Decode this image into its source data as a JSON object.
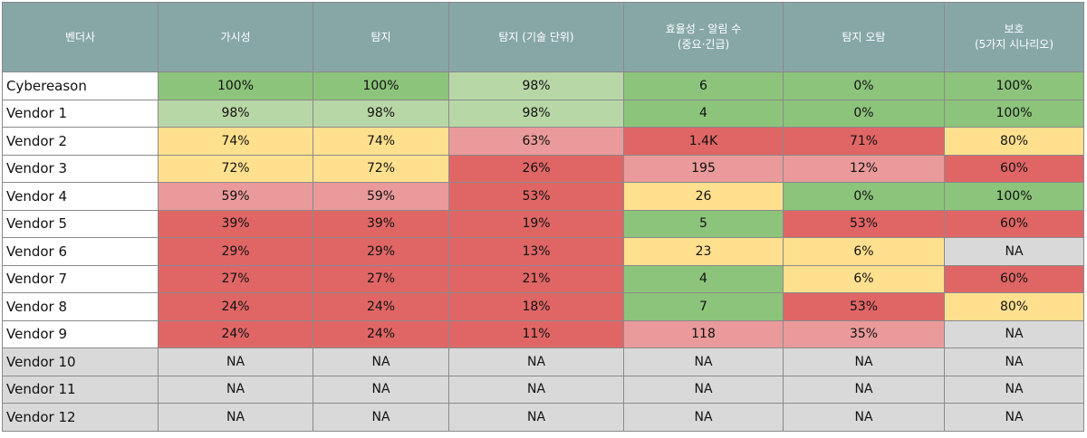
{
  "headers": [
    [
      "벤더사"
    ],
    [
      "가시성"
    ],
    [
      "탐지"
    ],
    [
      "탐지 (기술 단위)"
    ],
    [
      "효율성 – 알림 수",
      "(중요·긴급)"
    ],
    [
      "탐지 오탐"
    ],
    [
      "보호",
      "(5가지 시나리오)"
    ]
  ],
  "rows": [
    {
      "name": "Cybereason",
      "values": [
        "100%",
        "100%",
        "98%",
        "6",
        "0%",
        "100%"
      ]
    },
    {
      "name": "Vendor 1",
      "values": [
        "98%",
        "98%",
        "98%",
        "4",
        "0%",
        "100%"
      ]
    },
    {
      "name": "Vendor 2",
      "values": [
        "74%",
        "74%",
        "63%",
        "1.4K",
        "71%",
        "80%"
      ]
    },
    {
      "name": "Vendor 3",
      "values": [
        "72%",
        "72%",
        "26%",
        "195",
        "12%",
        "60%"
      ]
    },
    {
      "name": "Vendor 4",
      "values": [
        "59%",
        "59%",
        "53%",
        "26",
        "0%",
        "100%"
      ]
    },
    {
      "name": "Vendor 5",
      "values": [
        "39%",
        "39%",
        "19%",
        "5",
        "53%",
        "60%"
      ]
    },
    {
      "name": "Vendor 6",
      "values": [
        "29%",
        "29%",
        "13%",
        "23",
        "6%",
        "NA"
      ]
    },
    {
      "name": "Vendor 7",
      "values": [
        "27%",
        "27%",
        "21%",
        "4",
        "6%",
        "60%"
      ]
    },
    {
      "name": "Vendor 8",
      "values": [
        "24%",
        "24%",
        "18%",
        "7",
        "53%",
        "80%"
      ]
    },
    {
      "name": "Vendor 9",
      "values": [
        "24%",
        "24%",
        "11%",
        "118",
        "35%",
        "NA"
      ]
    },
    {
      "name": "Vendor 10",
      "values": [
        "NA",
        "NA",
        "NA",
        "NA",
        "NA",
        "NA"
      ]
    },
    {
      "name": "Vendor 11",
      "values": [
        "NA",
        "NA",
        "NA",
        "NA",
        "NA",
        "NA"
      ]
    },
    {
      "name": "Vendor 12",
      "values": [
        "NA",
        "NA",
        "NA",
        "NA",
        "NA",
        "NA"
      ]
    }
  ],
  "rating_colors": {
    "g": "#8dc47b",
    "lg": "#b8d7a6",
    "y": "#ffe08f",
    "p": "#ea9a9a",
    "r": "#e06666",
    "n": "#d9d9d9",
    "header": "#87a7a7"
  },
  "cell_ratings": [
    [
      "g",
      "g",
      "lg",
      "g",
      "g",
      "g"
    ],
    [
      "lg",
      "lg",
      "lg",
      "g",
      "g",
      "g"
    ],
    [
      "y",
      "y",
      "p",
      "r",
      "r",
      "y"
    ],
    [
      "y",
      "y",
      "r",
      "p",
      "p",
      "r"
    ],
    [
      "p",
      "p",
      "r",
      "y",
      "g",
      "g"
    ],
    [
      "r",
      "r",
      "r",
      "g",
      "r",
      "r"
    ],
    [
      "r",
      "r",
      "r",
      "y",
      "y",
      "n"
    ],
    [
      "r",
      "r",
      "r",
      "g",
      "y",
      "r"
    ],
    [
      "r",
      "r",
      "r",
      "g",
      "r",
      "y"
    ],
    [
      "r",
      "r",
      "r",
      "p",
      "p",
      "n"
    ],
    [
      "n",
      "n",
      "n",
      "n",
      "n",
      "n"
    ],
    [
      "n",
      "n",
      "n",
      "n",
      "n",
      "n"
    ],
    [
      "n",
      "n",
      "n",
      "n",
      "n",
      "n"
    ]
  ],
  "name_ratings": [
    "w",
    "w",
    "w",
    "w",
    "w",
    "w",
    "w",
    "w",
    "w",
    "w",
    "n",
    "n",
    "n"
  ]
}
